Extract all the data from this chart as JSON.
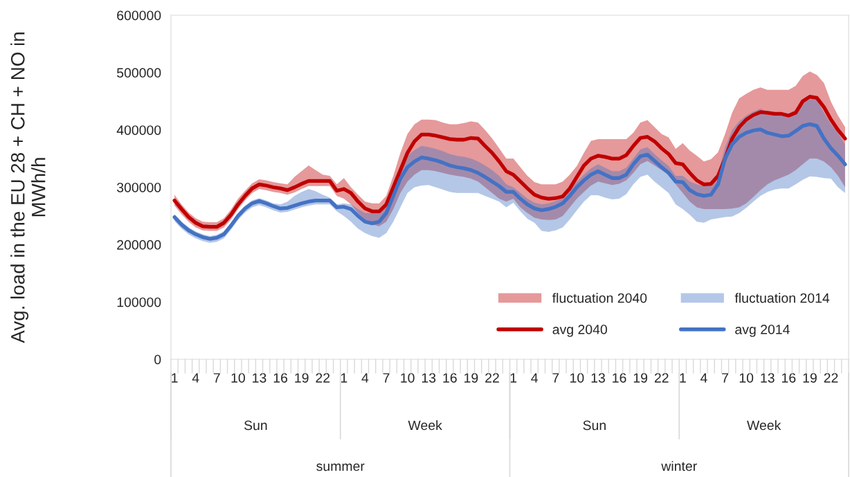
{
  "chart_data": {
    "type": "line",
    "ylabel": "Avg. load in the EU 28 + CH + NO in MWh/h",
    "categories": [
      "1",
      null,
      null,
      "4",
      null,
      null,
      "7",
      null,
      null,
      "10",
      null,
      null,
      "13",
      null,
      null,
      "16",
      null,
      null,
      "19",
      null,
      null,
      "22",
      null,
      null,
      "1",
      null,
      null,
      "4",
      null,
      null,
      "7",
      null,
      null,
      "10",
      null,
      null,
      "13",
      null,
      null,
      "16",
      null,
      null,
      "19",
      null,
      null,
      "22",
      null,
      null,
      "1",
      null,
      null,
      "4",
      null,
      null,
      "7",
      null,
      null,
      "10",
      null,
      null,
      "13",
      null,
      null,
      "16",
      null,
      null,
      "19",
      null,
      null,
      "22",
      null,
      null,
      "1",
      null,
      null,
      "4",
      null,
      null,
      "7",
      null,
      null,
      "10",
      null,
      null,
      "13",
      null,
      null,
      "16",
      null,
      null,
      "19",
      null,
      null,
      "22",
      null,
      null
    ],
    "annotations": [
      "Sun",
      "Week",
      "Sun",
      "Week",
      "summer",
      "winter"
    ],
    "ylim": [
      0,
      600000
    ],
    "yticks": [
      0,
      100000,
      200000,
      300000,
      400000,
      500000,
      600000
    ],
    "grid": false,
    "legend": "bottom right",
    "series": [
      {
        "name": "fluctuation 2040",
        "color": "#e5999a",
        "values": [
          null,
          null,
          null,
          null,
          null,
          null,
          null,
          null,
          null,
          null,
          null,
          null,
          null,
          null,
          null,
          null,
          null,
          null,
          null,
          null,
          null,
          null,
          null,
          null,
          null,
          null,
          null,
          null,
          null,
          null,
          null,
          null,
          null,
          null,
          null,
          null,
          null,
          null,
          null,
          null,
          null,
          null,
          null,
          null,
          null,
          null,
          null,
          null,
          null,
          null,
          null,
          null,
          null,
          null,
          null,
          null,
          null,
          null,
          null,
          null,
          null,
          null,
          null,
          null,
          null,
          null,
          null,
          null,
          null,
          null,
          null,
          null,
          null,
          null,
          null,
          null,
          null,
          null,
          null,
          null,
          null,
          null,
          null,
          null,
          null,
          null,
          null,
          null,
          null,
          null,
          null,
          null,
          null,
          null,
          null,
          null
        ],
        "upper": [
          287000,
          270000,
          256000,
          246000,
          240000,
          239000,
          239000,
          246000,
          261000,
          280000,
          294000,
          307000,
          314000,
          312000,
          309000,
          307000,
          305000,
          318000,
          328000,
          338000,
          330000,
          322000,
          320000,
          305000,
          316000,
          300000,
          287000,
          275000,
          272000,
          272000,
          285000,
          320000,
          360000,
          393000,
          410000,
          418000,
          418000,
          417000,
          413000,
          410000,
          410000,
          412000,
          415000,
          413000,
          400000,
          385000,
          368000,
          350000,
          350000,
          335000,
          320000,
          309000,
          305000,
          305000,
          305000,
          310000,
          322000,
          337000,
          360000,
          381000,
          384000,
          384000,
          384000,
          384000,
          384000,
          395000,
          413000,
          417000,
          405000,
          393000,
          387000,
          367000,
          377000,
          364000,
          355000,
          345000,
          349000,
          361000,
          393000,
          430000,
          455000,
          463000,
          470000,
          474000,
          470000,
          470000,
          470000,
          470000,
          477000,
          494000,
          502000,
          496000,
          482000,
          449000,
          425000,
          405000
        ],
        "lower": [
          268000,
          253000,
          240000,
          230000,
          225000,
          224000,
          224000,
          230000,
          244000,
          262000,
          277000,
          290000,
          297000,
          295000,
          292000,
          290000,
          287000,
          291000,
          297000,
          302000,
          302000,
          302000,
          302000,
          285000,
          280000,
          270000,
          255000,
          243000,
          235000,
          232000,
          240000,
          262000,
          290000,
          310000,
          322000,
          330000,
          330000,
          328000,
          325000,
          322000,
          320000,
          318000,
          315000,
          310000,
          300000,
          290000,
          280000,
          275000,
          280000,
          265000,
          255000,
          247000,
          244000,
          243000,
          244000,
          250000,
          265000,
          280000,
          292000,
          303000,
          310000,
          307000,
          304000,
          306000,
          312000,
          325000,
          340000,
          346000,
          338000,
          330000,
          322000,
          305000,
          290000,
          275000,
          265000,
          262000,
          262000,
          262000,
          262000,
          263000,
          265000,
          272000,
          283000,
          295000,
          305000,
          312000,
          317000,
          322000,
          330000,
          340000,
          350000,
          350000,
          345000,
          335000,
          320000,
          300000
        ]
      },
      {
        "name": "fluctuation 2014",
        "color": "#b4c7e7",
        "values": [
          null,
          null,
          null,
          null,
          null,
          null,
          null,
          null,
          null,
          null,
          null,
          null,
          null,
          null,
          null,
          null,
          null,
          null,
          null,
          null,
          null,
          null,
          null,
          null,
          null,
          null,
          null,
          null,
          null,
          null,
          null,
          null,
          null,
          null,
          null,
          null,
          null,
          null,
          null,
          null,
          null,
          null,
          null,
          null,
          null,
          null,
          null,
          null,
          null,
          null,
          null,
          null,
          null,
          null,
          null,
          null,
          null,
          null,
          null,
          null,
          null,
          null,
          null,
          null,
          null,
          null,
          null,
          null,
          null,
          null,
          null,
          null,
          null,
          null,
          null,
          null,
          null,
          null,
          null,
          null,
          null,
          null,
          null,
          null,
          null,
          null,
          null,
          null,
          null,
          null,
          null,
          null,
          null,
          null,
          null,
          null
        ],
        "upper": [
          253000,
          240000,
          230000,
          223000,
          218000,
          215000,
          217000,
          223000,
          238000,
          255000,
          268000,
          277000,
          281000,
          277000,
          272000,
          270000,
          275000,
          285000,
          292000,
          297000,
          293000,
          287000,
          282000,
          270000,
          272000,
          270000,
          262000,
          255000,
          255000,
          258000,
          272000,
          302000,
          333000,
          355000,
          365000,
          372000,
          370000,
          367000,
          363000,
          358000,
          355000,
          353000,
          350000,
          345000,
          338000,
          330000,
          320000,
          305000,
          300000,
          290000,
          280000,
          273000,
          270000,
          272000,
          276000,
          282000,
          295000,
          310000,
          322000,
          333000,
          340000,
          334000,
          328000,
          328000,
          334000,
          350000,
          366000,
          370000,
          358000,
          347000,
          337000,
          320000,
          320000,
          310000,
          305000,
          302000,
          305000,
          325000,
          370000,
          400000,
          415000,
          425000,
          432000,
          437000,
          432000,
          430000,
          428000,
          428000,
          435000,
          448000,
          455000,
          452000,
          430000,
          410000,
          395000,
          375000
        ],
        "lower": [
          241000,
          228000,
          218000,
          211000,
          206000,
          203000,
          205000,
          211000,
          226000,
          243000,
          256000,
          265000,
          269000,
          265000,
          260000,
          256000,
          257000,
          261000,
          265000,
          268000,
          270000,
          270000,
          270000,
          258000,
          250000,
          240000,
          228000,
          220000,
          215000,
          212000,
          220000,
          240000,
          265000,
          290000,
          300000,
          303000,
          304000,
          300000,
          296000,
          292000,
          290000,
          290000,
          290000,
          290000,
          285000,
          280000,
          275000,
          265000,
          273000,
          258000,
          245000,
          238000,
          224000,
          222000,
          225000,
          230000,
          244000,
          260000,
          275000,
          286000,
          286000,
          282000,
          279000,
          280000,
          288000,
          305000,
          318000,
          322000,
          310000,
          300000,
          290000,
          270000,
          262000,
          252000,
          240000,
          238000,
          244000,
          246000,
          248000,
          249000,
          255000,
          264000,
          275000,
          285000,
          292000,
          296000,
          298000,
          298000,
          305000,
          313000,
          319000,
          318000,
          316000,
          315000,
          300000,
          290000
        ]
      },
      {
        "name": "avg 2040",
        "color": "#c00000",
        "values": [
          277000,
          262000,
          248000,
          238000,
          232000,
          231000,
          231000,
          238000,
          252000,
          270000,
          285000,
          298000,
          305000,
          303000,
          300000,
          298000,
          295000,
          300000,
          306000,
          311000,
          311000,
          311000,
          311000,
          294000,
          297000,
          290000,
          275000,
          263000,
          258000,
          258000,
          270000,
          300000,
          330000,
          360000,
          380000,
          392000,
          392000,
          390000,
          387000,
          384000,
          383000,
          383000,
          386000,
          385000,
          372000,
          360000,
          345000,
          328000,
          322000,
          310000,
          298000,
          287000,
          282000,
          280000,
          281000,
          284000,
          298000,
          318000,
          338000,
          350000,
          355000,
          353000,
          350000,
          350000,
          356000,
          372000,
          386000,
          388000,
          380000,
          368000,
          358000,
          342000,
          340000,
          325000,
          312000,
          305000,
          306000,
          320000,
          350000,
          385000,
          405000,
          418000,
          426000,
          431000,
          430000,
          428000,
          428000,
          425000,
          430000,
          450000,
          458000,
          456000,
          440000,
          418000,
          400000,
          385000
        ]
      },
      {
        "name": "avg 2014",
        "color": "#4472c4",
        "values": [
          248000,
          235000,
          225000,
          218000,
          213000,
          210000,
          212000,
          218000,
          233000,
          250000,
          263000,
          272000,
          276000,
          272000,
          267000,
          263000,
          264000,
          268000,
          272000,
          275000,
          277000,
          277000,
          277000,
          265000,
          266000,
          262000,
          250000,
          240000,
          237000,
          240000,
          255000,
          285000,
          315000,
          335000,
          345000,
          352000,
          350000,
          347000,
          343000,
          338000,
          335000,
          333000,
          330000,
          325000,
          318000,
          310000,
          302000,
          292000,
          292000,
          280000,
          270000,
          263000,
          260000,
          262000,
          266000,
          272000,
          285000,
          300000,
          312000,
          322000,
          328000,
          322000,
          316000,
          316000,
          322000,
          340000,
          354000,
          357000,
          346000,
          335000,
          325000,
          310000,
          309000,
          295000,
          288000,
          285000,
          287000,
          305000,
          350000,
          375000,
          388000,
          395000,
          399000,
          401000,
          395000,
          392000,
          389000,
          390000,
          398000,
          407000,
          410000,
          407000,
          385000,
          368000,
          355000,
          340000
        ]
      }
    ]
  }
}
